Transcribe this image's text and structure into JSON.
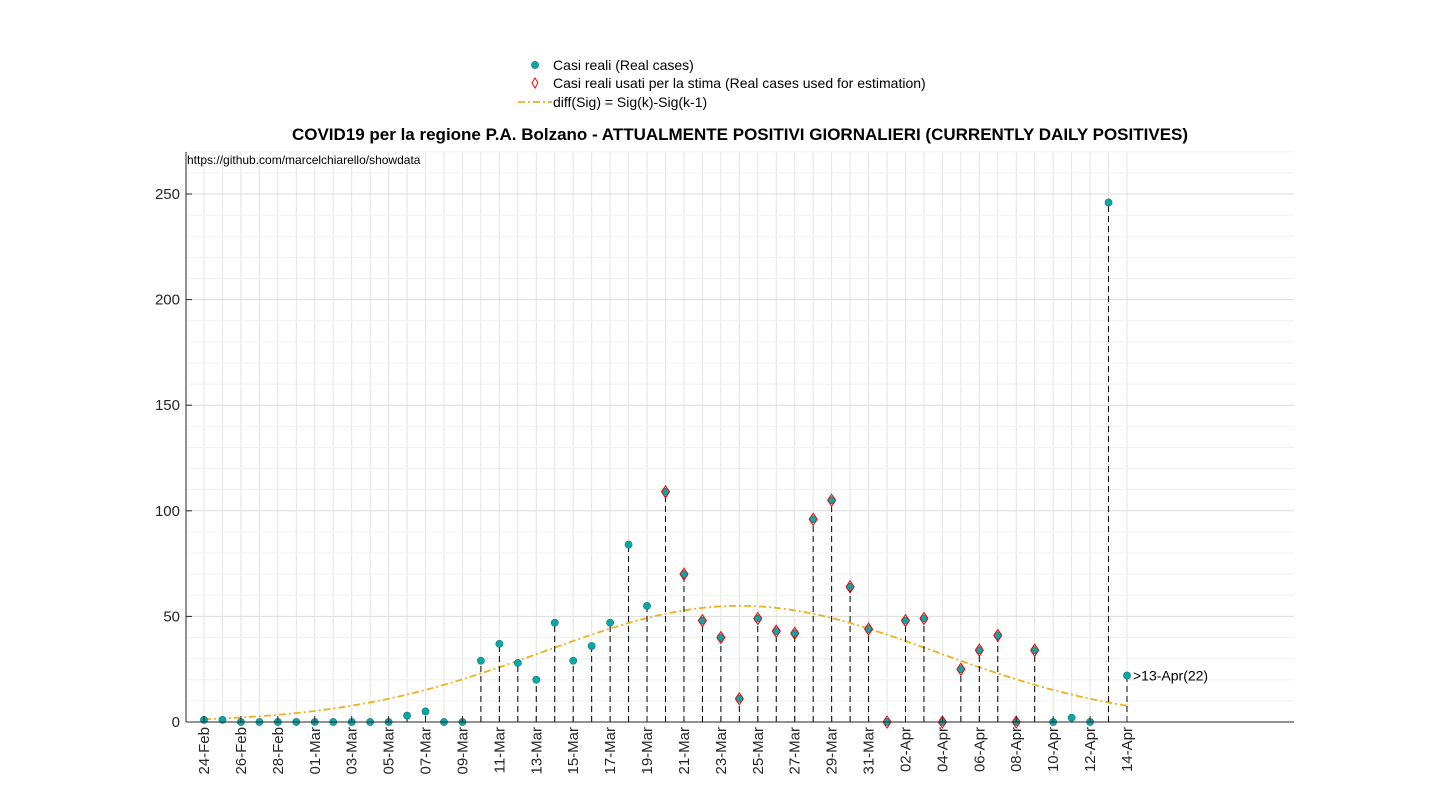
{
  "chart_data": {
    "type": "scatter",
    "title": "COVID19 per la regione P.A. Bolzano - ATTUALMENTE POSITIVI GIORNALIERI (CURRENTLY DAILY POSITIVES)",
    "source_note": "https://github.com/marcelchiarello/showdata",
    "ylim": [
      0,
      270
    ],
    "yticks": [
      0,
      50,
      100,
      150,
      200,
      250
    ],
    "xlim_days": [
      0,
      50
    ],
    "x_tick_labels": [
      "24-Feb",
      "26-Feb",
      "28-Feb",
      "01-Mar",
      "03-Mar",
      "05-Mar",
      "07-Mar",
      "09-Mar",
      "11-Mar",
      "13-Mar",
      "15-Mar",
      "17-Mar",
      "19-Mar",
      "21-Mar",
      "23-Mar",
      "25-Mar",
      "27-Mar",
      "29-Mar",
      "31-Mar",
      "02-Apr",
      "04-Apr",
      "06-Apr",
      "08-Apr",
      "10-Apr",
      "12-Apr",
      "14-Apr"
    ],
    "grid": true,
    "legend_position": "top-center",
    "legend": [
      {
        "label": "Casi reali (Real cases)",
        "marker": "dot",
        "color": "#0aa7a7"
      },
      {
        "label": "Casi reali usati per la stima (Real cases used for estimation)",
        "marker": "diamond",
        "color": "#ff0000"
      },
      {
        "label": "diff(Sig) = Sig(k)-Sig(k-1)",
        "marker": "dashdot-line",
        "color": "#edb120"
      }
    ],
    "series": [
      {
        "name": "Casi reali (Real cases)",
        "values": [
          1,
          1,
          0,
          0,
          0,
          0,
          0,
          0,
          0,
          0,
          0,
          3,
          5,
          0,
          0,
          29,
          37,
          28,
          20,
          47,
          29,
          36,
          47,
          84,
          55,
          109,
          70,
          48,
          40,
          11,
          49,
          43,
          42,
          96,
          105,
          64,
          44,
          0,
          48,
          49,
          0,
          25,
          34,
          41,
          0,
          34,
          0,
          2,
          0,
          246,
          22
        ]
      },
      {
        "name": "Casi reali usati per la stima (Real cases used for estimation)",
        "x_index_range": [
          25,
          45
        ],
        "values": [
          109,
          70,
          48,
          40,
          11,
          49,
          43,
          42,
          96,
          105,
          64,
          44,
          0,
          48,
          49,
          0,
          25,
          34,
          41,
          0,
          34
        ]
      },
      {
        "name": "diff(Sig) = Sig(k)-Sig(k-1)",
        "curve": {
          "peak_day": 29,
          "peak_value": 55,
          "sigma_days": 10.6,
          "x_range": [
            0,
            50
          ]
        }
      }
    ],
    "annotation": {
      "text": ">13-Apr(22)"
    }
  }
}
